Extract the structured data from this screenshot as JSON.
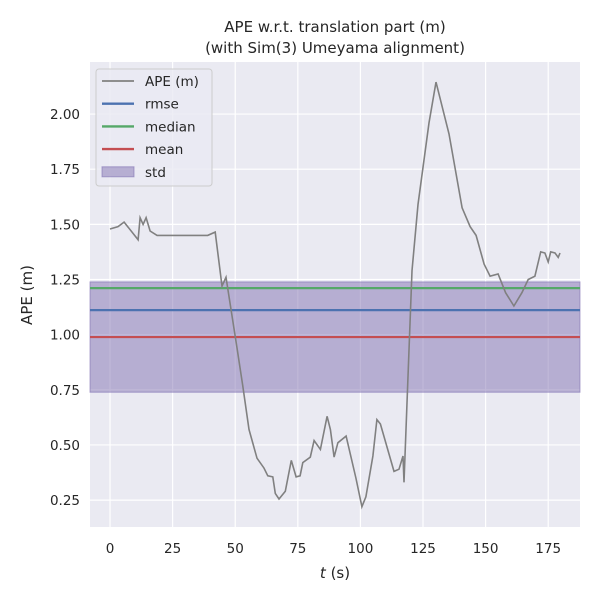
{
  "chart_data": {
    "type": "line",
    "title": "APE w.r.t. translation part (m)",
    "subtitle": "(with Sim(3) Umeyama alignment)",
    "xlabel_italic": "t",
    "xlabel_rest": " (s)",
    "ylabel": "APE (m)",
    "xlim": [
      -8,
      187.7
    ],
    "ylim": [
      0.128,
      2.236
    ],
    "xticks": [
      0,
      25,
      50,
      75,
      100,
      125,
      150,
      175
    ],
    "yticks": [
      0.25,
      0.5,
      0.75,
      1.0,
      1.25,
      1.5,
      1.75,
      2.0
    ],
    "ytick_labels": [
      "0.25",
      "0.50",
      "0.75",
      "1.00",
      "1.25",
      "1.50",
      "1.75",
      "2.00"
    ],
    "grid": true,
    "legend_position": "top-left",
    "colors": {
      "ape": "#808080",
      "rmse": "#4c72b0",
      "median": "#55a868",
      "mean": "#c44e52",
      "std": "#8172b2",
      "bg": "#eaeaf2"
    },
    "legend": [
      "APE (m)",
      "rmse",
      "median",
      "mean",
      "std"
    ],
    "stats": {
      "rmse": 1.111,
      "median": 1.211,
      "mean": 0.989,
      "std": 0.25
    },
    "series": [
      {
        "name": "APE (m)",
        "x": [
          0,
          3.2,
          5.6,
          11.2,
          12,
          13.2,
          14.4,
          16,
          18.8,
          39,
          42,
          44.7,
          46.3,
          50.7,
          53,
          55.5,
          58.7,
          61.5,
          63,
          65,
          66,
          67.5,
          70,
          72.4,
          74.3,
          75.9,
          77,
          80,
          81.5,
          84,
          86.7,
          88,
          89.5,
          91,
          94.3,
          98.2,
          100.6,
          102.2,
          105,
          106.6,
          108,
          113.4,
          115.4,
          117,
          117.4,
          120.6,
          123,
          127.4,
          130.2,
          135.4,
          140.6,
          143.8,
          146.2,
          149.4,
          151.8,
          155,
          158,
          161.3,
          164.5,
          167,
          169.7,
          172,
          173.7,
          175,
          176,
          177.7,
          179,
          179.7
        ],
        "y": [
          1.479,
          1.49,
          1.51,
          1.43,
          1.53,
          1.5,
          1.53,
          1.47,
          1.45,
          1.45,
          1.465,
          1.22,
          1.26,
          0.94,
          0.77,
          0.57,
          0.44,
          0.395,
          0.36,
          0.355,
          0.28,
          0.255,
          0.29,
          0.43,
          0.355,
          0.36,
          0.42,
          0.445,
          0.52,
          0.48,
          0.63,
          0.57,
          0.445,
          0.51,
          0.54,
          0.35,
          0.22,
          0.265,
          0.45,
          0.615,
          0.595,
          0.38,
          0.39,
          0.45,
          0.33,
          1.29,
          1.59,
          1.96,
          2.145,
          1.91,
          1.575,
          1.49,
          1.45,
          1.32,
          1.265,
          1.275,
          1.19,
          1.13,
          1.19,
          1.25,
          1.265,
          1.375,
          1.37,
          1.33,
          1.375,
          1.37,
          1.35,
          1.37
        ]
      }
    ]
  }
}
